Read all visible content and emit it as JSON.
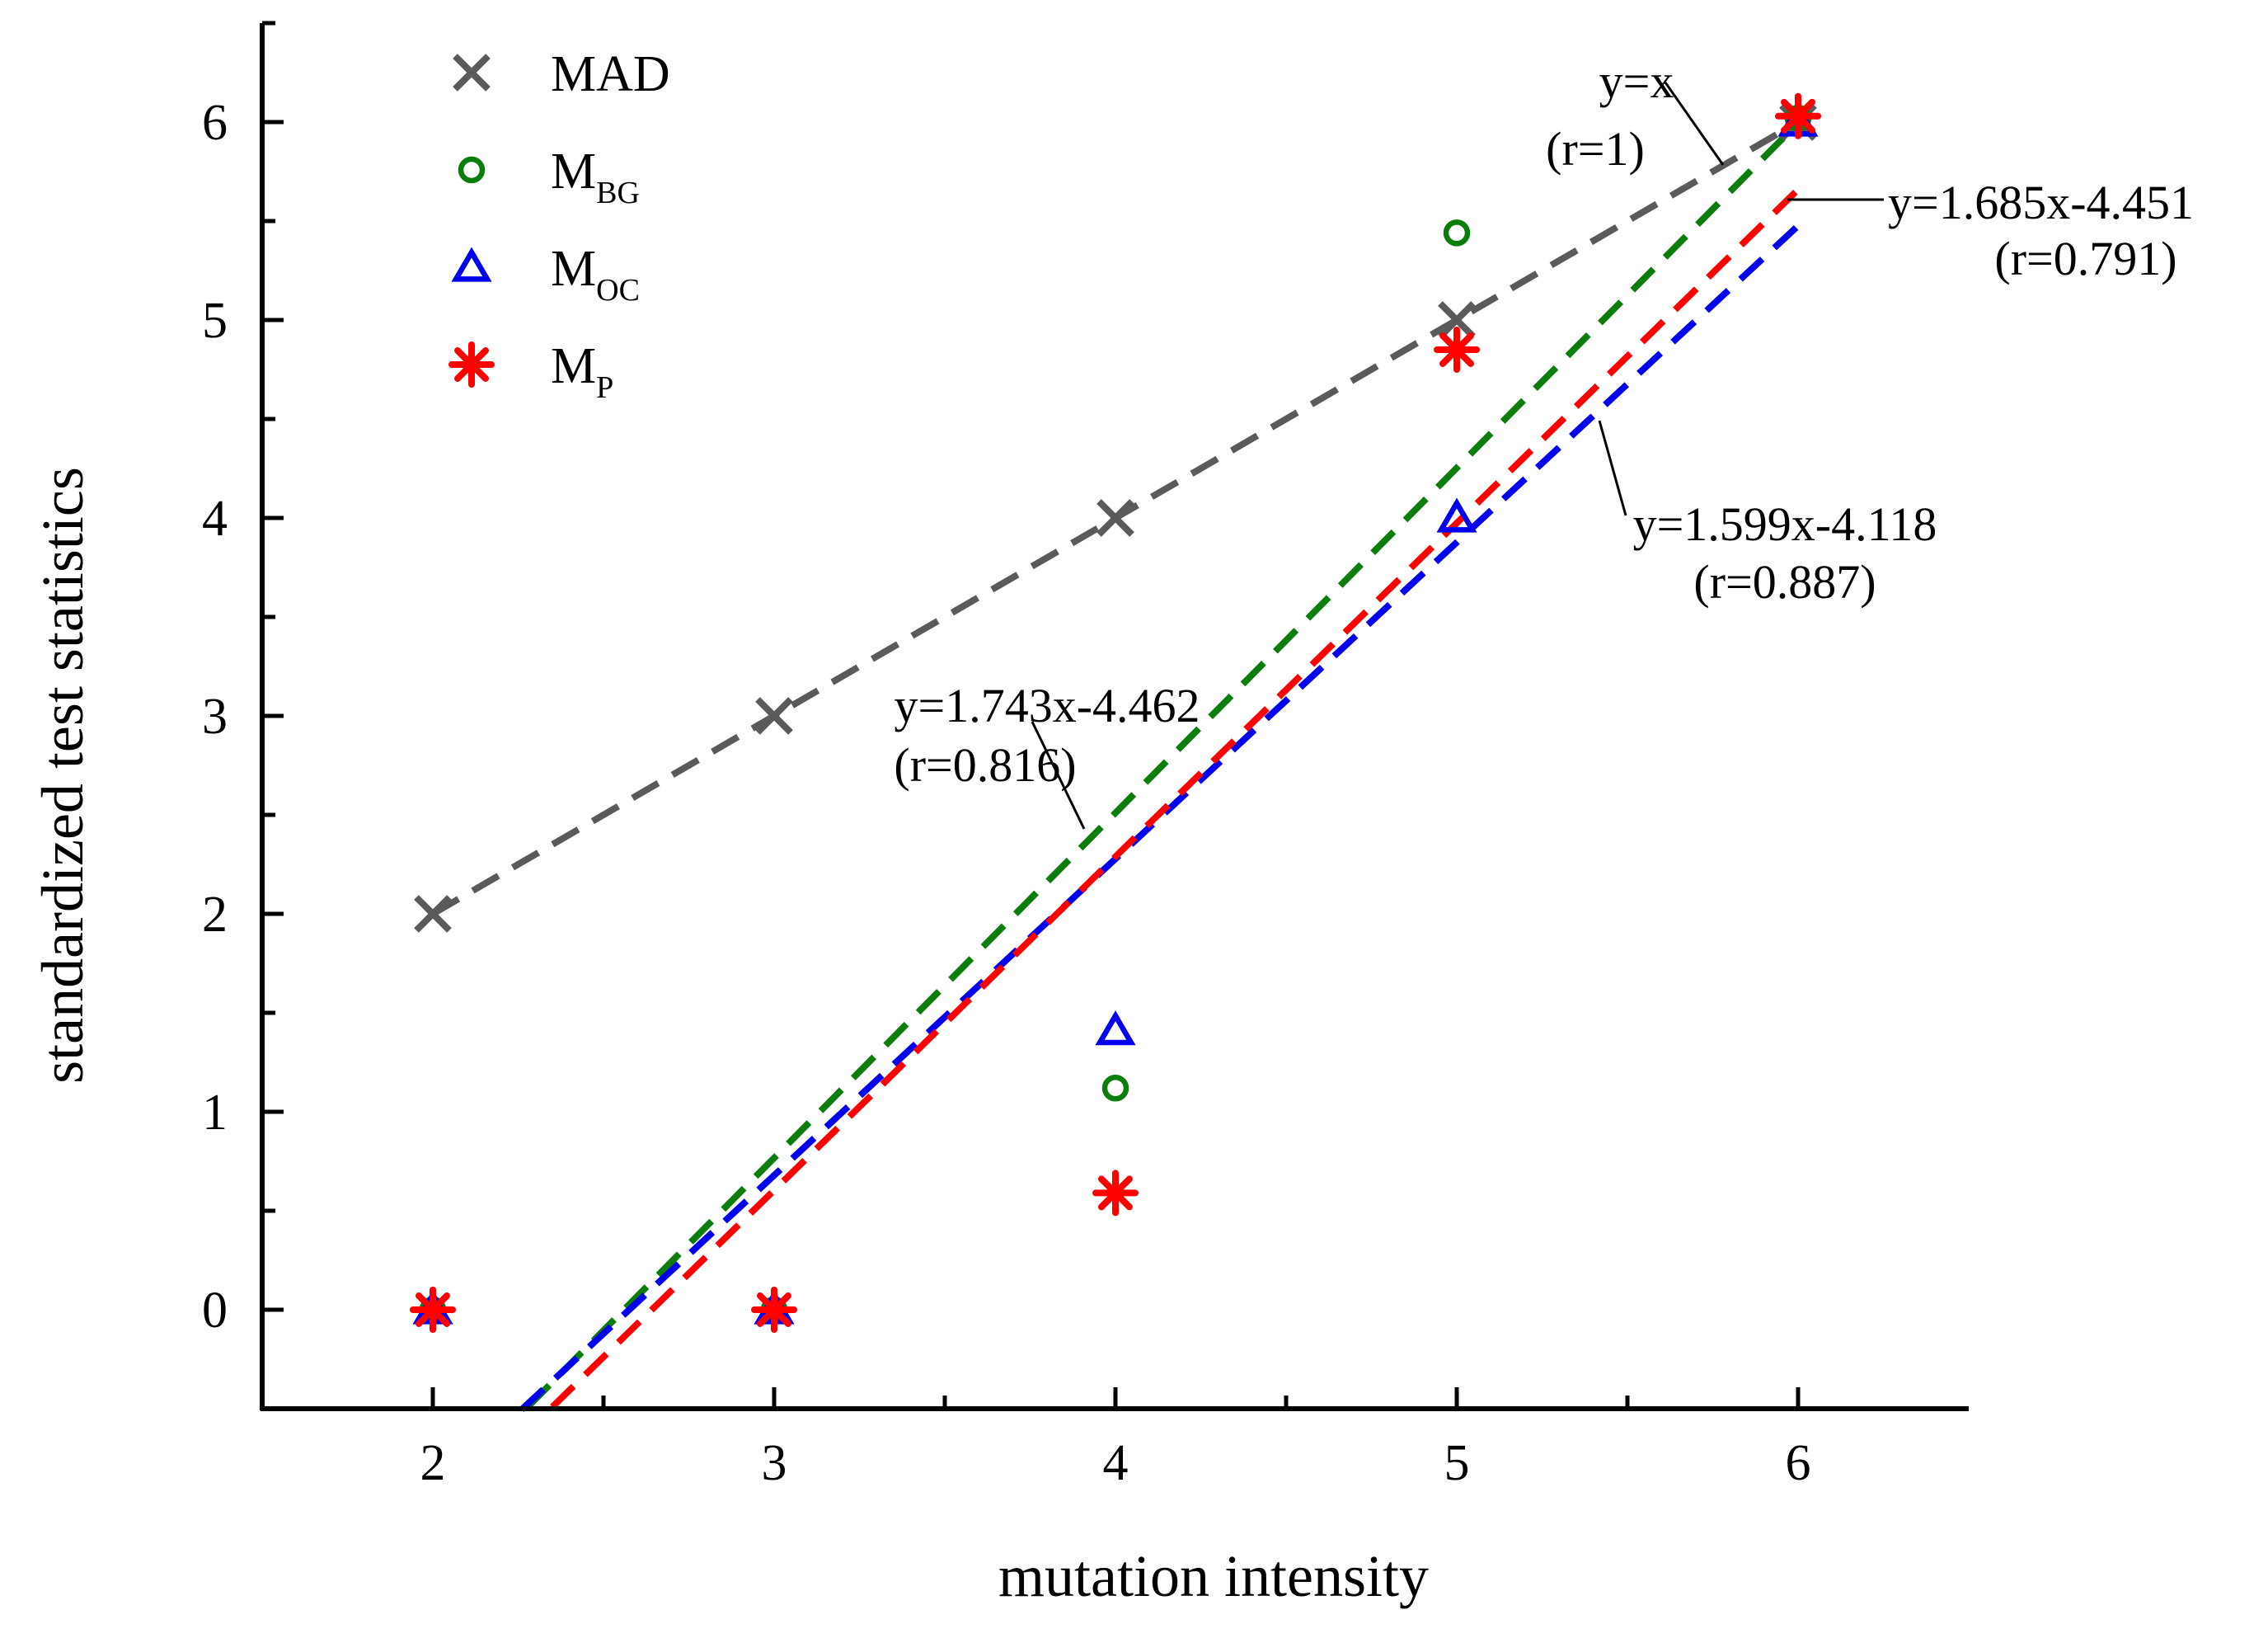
{
  "chart_data": {
    "type": "scatter",
    "xlabel": "mutation intensity",
    "ylabel": "standardized test statistics",
    "xlim": [
      1.5,
      6.5
    ],
    "ylim": [
      -0.5,
      6.5
    ],
    "xticks": [
      2,
      3,
      4,
      5,
      6
    ],
    "yticks": [
      0,
      1,
      2,
      3,
      4,
      5,
      6
    ],
    "grid": false,
    "legend_position": "top-left",
    "series": [
      {
        "name": "MAD",
        "main": "MAD",
        "sub": "",
        "marker": "x",
        "color": "#5a5a5a",
        "x": [
          2,
          3,
          4,
          5,
          6
        ],
        "y": [
          2,
          3,
          4,
          5,
          6
        ]
      },
      {
        "name": "MBG",
        "main": "M",
        "sub": "BG",
        "marker": "circle",
        "color": "#0a7d0a",
        "x": [
          2,
          3,
          4,
          5,
          6
        ],
        "y": [
          0,
          0,
          1.12,
          5.44,
          6.02
        ]
      },
      {
        "name": "MOC",
        "main": "M",
        "sub": "OC",
        "marker": "triangle",
        "color": "#0000ee",
        "x": [
          2,
          3,
          4,
          5,
          6
        ],
        "y": [
          0,
          0,
          1.41,
          4.0,
          6.0
        ]
      },
      {
        "name": "MP",
        "main": "M",
        "sub": "P",
        "marker": "asterisk",
        "color": "#ff0000",
        "x": [
          2,
          3,
          4,
          5,
          6
        ],
        "y": [
          0,
          0,
          0.59,
          4.85,
          6.03
        ]
      }
    ],
    "fit_lines": [
      {
        "series": "MAD",
        "slope": 1,
        "intercept": 0,
        "x_range": [
          2,
          6
        ],
        "color": "#5a5a5a"
      },
      {
        "series": "MBG",
        "slope": 1.743,
        "intercept": -4.462,
        "x_range": [
          2.28,
          6
        ],
        "color": "#0a7d0a"
      },
      {
        "series": "MOC",
        "slope": 1.599,
        "intercept": -4.118,
        "x_range": [
          2.26,
          6
        ],
        "color": "#0000ee"
      },
      {
        "series": "MP",
        "slope": 1.685,
        "intercept": -4.451,
        "x_range": [
          2.35,
          6
        ],
        "color": "#ff0000"
      }
    ],
    "annotations": [
      {
        "lines": [
          "y=x",
          "(r=1)"
        ]
      },
      {
        "lines": [
          "y=1.685x-4.451",
          "(r=0.791)"
        ]
      },
      {
        "lines": [
          "y=1.599x-4.118",
          "(r=0.887)"
        ]
      },
      {
        "lines": [
          "y=1.743x-4.462",
          "(r=0.816)"
        ]
      }
    ]
  }
}
